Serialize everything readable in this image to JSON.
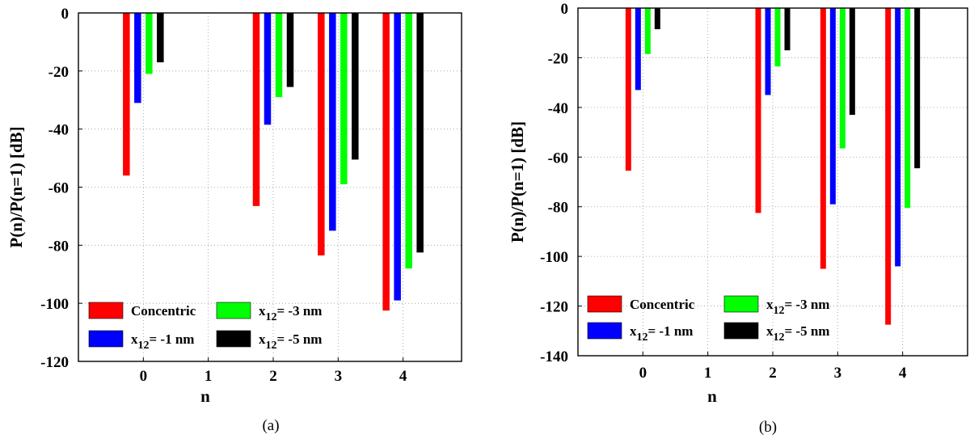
{
  "chart_data": [
    {
      "type": "bar",
      "panel_label": "(a)",
      "xlabel": "n",
      "ylabel": "P(n)/P(n=1) [dB]",
      "ylim": [
        -120,
        0
      ],
      "yticks": [
        0,
        -20,
        -40,
        -60,
        -80,
        -100,
        -120
      ],
      "x_ticks": [
        "0",
        "1",
        "2",
        "3",
        "4"
      ],
      "categories": [
        "0",
        "2",
        "3",
        "4"
      ],
      "grid": true,
      "legend_position": "bottom-left",
      "series": [
        {
          "name": "Concentric",
          "label_main": "Concentric",
          "color": "#ff0000",
          "values": [
            -56,
            -66.5,
            -83.5,
            -102.5
          ]
        },
        {
          "name": "x12= -1 nm",
          "label_main": "x",
          "label_sub": "12",
          "label_rest": "= -1 nm",
          "color": "#0000ff",
          "values": [
            -31,
            -38.5,
            -75,
            -99
          ]
        },
        {
          "name": "x12= -3 nm",
          "label_main": "x",
          "label_sub": "12",
          "label_rest": "= -3 nm",
          "color": "#00ff00",
          "values": [
            -21,
            -29,
            -59,
            -88
          ]
        },
        {
          "name": "x12= -5 nm",
          "label_main": "x",
          "label_sub": "12",
          "label_rest": "= -5 nm",
          "color": "#000000",
          "values": [
            -17,
            -25.5,
            -50.5,
            -82.5
          ]
        }
      ]
    },
    {
      "type": "bar",
      "panel_label": "(b)",
      "xlabel": "n",
      "ylabel": "P(n)/P(n=1) [dB]",
      "ylim": [
        -140,
        0
      ],
      "yticks": [
        0,
        -20,
        -40,
        -60,
        -80,
        -100,
        -120,
        -140
      ],
      "x_ticks": [
        "0",
        "1",
        "2",
        "3",
        "4"
      ],
      "categories": [
        "0",
        "2",
        "3",
        "4"
      ],
      "grid": true,
      "legend_position": "bottom-left",
      "series": [
        {
          "name": "Concentric",
          "label_main": "Concentric",
          "color": "#ff0000",
          "values": [
            -65.5,
            -82.5,
            -105,
            -127.5
          ]
        },
        {
          "name": "x12= -1 nm",
          "label_main": "x",
          "label_sub": "12",
          "label_rest": "= -1 nm",
          "color": "#0000ff",
          "values": [
            -33,
            -35,
            -79,
            -104
          ]
        },
        {
          "name": "x12= -3 nm",
          "label_main": "x",
          "label_sub": "12",
          "label_rest": "= -3 nm",
          "color": "#00ff00",
          "values": [
            -18.5,
            -23.5,
            -56.5,
            -80.5
          ]
        },
        {
          "name": "x12= -5 nm",
          "label_main": "x",
          "label_sub": "12",
          "label_rest": "= -5 nm",
          "color": "#000000",
          "values": [
            -8.5,
            -17,
            -43,
            -64.5
          ]
        }
      ]
    }
  ]
}
